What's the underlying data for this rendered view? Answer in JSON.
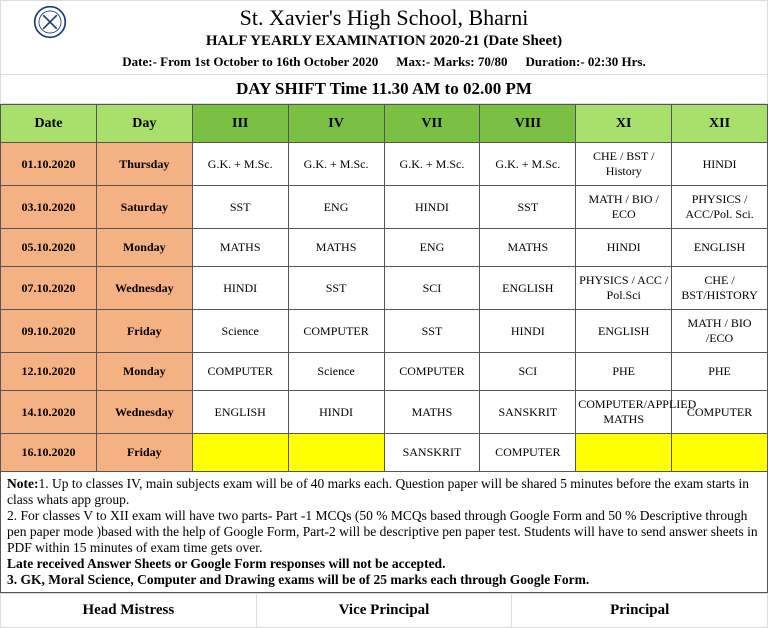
{
  "header": {
    "school_name": "St. Xavier's High School, Bharni",
    "exam_title": "HALF YEARLY EXAMINATION 2020-21 (Date Sheet)",
    "date_range": "Date:- From 1st October to 16th October 2020",
    "max_marks": "Max:- Marks: 70/80",
    "duration": "Duration:- 02:30  Hrs.",
    "shift_title": "DAY SHIFT  Time 11.30 AM to 02.00 PM"
  },
  "columns": {
    "date": "Date",
    "day": "Day",
    "c3": "III",
    "c4": "IV",
    "c7": "VII",
    "c8": "VIII",
    "c11": "XI",
    "c12": "XII"
  },
  "rows": [
    {
      "date": "01.10.2020",
      "day": "Thursday",
      "c3": "G.K. + M.Sc.",
      "c4": "G.K. + M.Sc.",
      "c7": "G.K. + M.Sc.",
      "c8": "G.K. + M.Sc.",
      "c11": "CHE / BST / History",
      "c12": "HINDI"
    },
    {
      "date": "03.10.2020",
      "day": "Saturday",
      "c3": "SST",
      "c4": "ENG",
      "c7": "HINDI",
      "c8": "SST",
      "c11": "MATH / BIO / ECO",
      "c12": "PHYSICS / ACC/Pol. Sci."
    },
    {
      "date": "05.10.2020",
      "day": "Monday",
      "c3": "MATHS",
      "c4": "MATHS",
      "c7": "ENG",
      "c8": "MATHS",
      "c11": "HINDI",
      "c12": "ENGLISH"
    },
    {
      "date": "07.10.2020",
      "day": "Wednesday",
      "c3": "HINDI",
      "c4": "SST",
      "c7": "SCI",
      "c8": "ENGLISH",
      "c11": "PHYSICS / ACC / Pol.Sci",
      "c12": "CHE / BST/HISTORY"
    },
    {
      "date": "09.10.2020",
      "day": "Friday",
      "c3": "Science",
      "c4": "COMPUTER",
      "c7": "SST",
      "c8": "HINDI",
      "c11": "ENGLISH",
      "c12": "MATH / BIO /ECO"
    },
    {
      "date": "12.10.2020",
      "day": "Monday",
      "c3": "COMPUTER",
      "c4": "Science",
      "c7": "COMPUTER",
      "c8": "SCI",
      "c11": "PHE",
      "c12": "PHE"
    },
    {
      "date": "14.10.2020",
      "day": "Wednesday",
      "c3": "ENGLISH",
      "c4": "HINDI",
      "c7": "MATHS",
      "c8": "SANSKRIT",
      "c11": "COMPUTER/APPLIED MATHS",
      "c12": "COMPUTER"
    },
    {
      "date": "16.10.2020",
      "day": "Friday",
      "c3": "",
      "c4": "",
      "c7": "SANSKRIT",
      "c8": "COMPUTER",
      "c11": "",
      "c12": "",
      "yellow": [
        "c3",
        "c4",
        "c11",
        "c12"
      ]
    }
  ],
  "notes": {
    "label": "Note:",
    "n1": "1. Up to classes IV, main subjects exam will be of 40 marks each.  Question paper will be shared 5 minutes before the exam starts in class whats app group.",
    "n2": "2. For classes V to XII exam will have two parts- Part -1 MCQs (50 % MCQs based through Google Form and 50 % Descriptive through pen paper mode )based with the help of Google Form, Part-2 will be descriptive pen paper test. Students will have to send answer sheets in PDF within 15 minutes of exam time gets over.",
    "late": "Late received Answer Sheets or Google Form responses will not be accepted.",
    "n3": "3. GK, Moral Science, Computer and Drawing exams will be  of 25 marks each through Google Form."
  },
  "signatures": {
    "hm": "Head Mistress",
    "vp": "Vice Principal",
    "p": "Principal"
  },
  "colors": {
    "header_green": "#7ac143",
    "header_lgreen": "#a8e06b",
    "date_orange": "#f4b183",
    "yellow": "#ffff00"
  }
}
